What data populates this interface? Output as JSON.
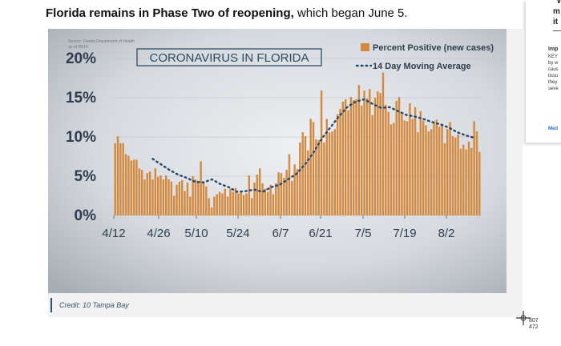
{
  "headline": {
    "bold": "Florida remains in Phase Two of reopening,",
    "rest": "which began June 5."
  },
  "chart_data": {
    "type": "bar",
    "title": "CORONAVIRUS IN FLORIDA",
    "source": "Source: Florida Department of Health",
    "as_of": "as of 08/14",
    "legend": [
      "Percent Positive (new cases)",
      "14 Day Moving Average"
    ],
    "y_ticks": [
      "0%",
      "5%",
      "10%",
      "15%",
      "20%"
    ],
    "x_ticks": [
      "4/12",
      "4/26",
      "5/10",
      "5/24",
      "6/7",
      "6/21",
      "7/5",
      "7/19",
      "8/2"
    ],
    "ylim": [
      0,
      20
    ],
    "xlim": [
      0,
      124
    ],
    "series": [
      {
        "values": [
          9.2,
          10.1,
          9.2,
          9.2,
          7.8,
          7.6,
          7.0,
          7.1,
          7.1,
          6.0,
          5.8,
          4.6,
          5.4,
          5.6,
          4.6,
          6.0,
          4.9,
          5.1,
          4.6,
          5.1,
          4.6,
          4.3,
          2.5,
          3.9,
          4.3,
          4.5,
          3.1,
          4.2,
          2.4,
          5.0,
          4.6,
          4.4,
          6.9,
          4.1,
          3.7,
          2.2,
          1.0,
          2.4,
          2.7,
          3.0,
          2.8,
          3.4,
          2.4,
          3.4,
          3.0,
          3.5,
          2.8,
          3.1,
          2.6,
          2.8,
          5.1,
          2.2,
          4.2,
          5.2,
          6.0,
          4.1,
          3.4,
          3.0,
          3.9,
          2.7,
          4.1,
          5.5,
          5.4,
          4.8,
          5.8,
          7.8,
          4.4,
          6.5,
          5.9,
          9.3,
          10.6,
          10.1,
          8.3,
          12.3,
          11.9,
          9.7,
          9.6,
          15.9,
          9.3,
          12.3,
          10.6,
          10.7,
          11.0,
          12.9,
          13.6,
          14.5,
          14.8,
          13.4,
          15.1,
          14.7,
          14.8,
          16.6,
          14.0,
          15.9,
          14.9,
          16.1,
          12.8,
          15.0,
          15.8,
          15.6,
          18.2,
          14.1,
          13.2,
          11.6,
          11.8,
          14.6,
          15.1,
          12.9,
          12.1,
          12.0,
          14.3,
          12.3,
          13.8,
          10.6,
          13.3,
          12.1,
          11.5,
          10.7,
          11.0,
          12.0,
          12.2,
          11.3,
          11.7,
          9.2,
          11.0,
          11.9,
          10.1,
          9.9,
          10.3,
          8.5,
          9.0,
          8.4,
          9.4,
          8.6,
          12.0,
          10.7,
          8.1
        ]
      },
      {
        "values": [
          7.2,
          6.5,
          5.8,
          5.2,
          4.8,
          4.3,
          4.2,
          4.6,
          4.0,
          3.6,
          3.0,
          3.1,
          3.3,
          3.0,
          3.6,
          3.9,
          4.6,
          5.3,
          6.5,
          8.0,
          9.8,
          11.2,
          12.6,
          13.8,
          14.5,
          14.8,
          14.2,
          13.7,
          13.8,
          13.3,
          12.8,
          12.6,
          12.3,
          11.9,
          11.6,
          11.2,
          10.6,
          10.2,
          9.9
        ]
      }
    ]
  },
  "credit": "Credit: 10 Tampa Bay",
  "side_card": {
    "line1": "\"W",
    "line2": "m",
    "line3": "it",
    "imp": "Imp",
    "lines": [
      "KEY",
      "by w",
      "caus",
      "tissu",
      "they",
      "seve"
    ],
    "link": "Med"
  },
  "cursor_readout": {
    "x": "807",
    "y": "472"
  }
}
